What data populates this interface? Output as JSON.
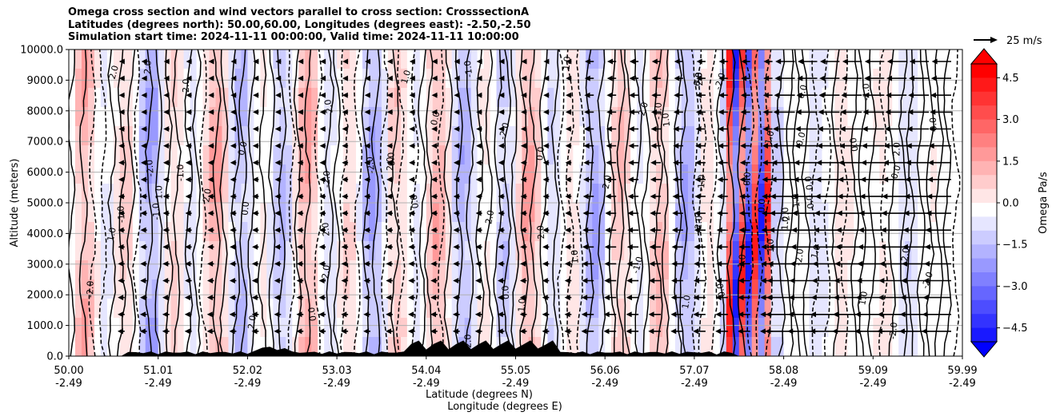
{
  "title_lines": [
    "Omega cross section and wind vectors parallel to cross section: CrosssectionA",
    "Latitudes (degrees north): 50.00,60.00, Longitudes (degrees east): -2.50,-2.50",
    "Simulation start time: 2024-11-11 00:00:00, Valid time: 2024-11-11 10:00:00"
  ],
  "chart_data": {
    "type": "heatmap",
    "title": "Omega cross section and wind vectors parallel to cross section: CrosssectionA",
    "ylabel": "Altitude (meters)",
    "xlabel_1": "Latitude (degrees N)",
    "xlabel_2": "Longitude (degrees E)",
    "ylim": [
      0,
      10000
    ],
    "y_ticks": [
      "0.0",
      "1000.0",
      "2000.0",
      "3000.0",
      "4000.0",
      "5000.0",
      "6000.0",
      "7000.0",
      "8000.0",
      "9000.0",
      "10000.0"
    ],
    "x_ticks": [
      {
        "lat": "50.00",
        "lon": "-2.49"
      },
      {
        "lat": "51.01",
        "lon": "-2.49"
      },
      {
        "lat": "52.02",
        "lon": "-2.49"
      },
      {
        "lat": "53.03",
        "lon": "-2.49"
      },
      {
        "lat": "54.04",
        "lon": "-2.49"
      },
      {
        "lat": "55.05",
        "lon": "-2.49"
      },
      {
        "lat": "56.06",
        "lon": "-2.49"
      },
      {
        "lat": "57.07",
        "lon": "-2.49"
      },
      {
        "lat": "58.08",
        "lon": "-2.49"
      },
      {
        "lat": "59.09",
        "lon": "-2.49"
      },
      {
        "lat": "59.99",
        "lon": "-2.49"
      }
    ],
    "grid": "horizontal",
    "colorbar": {
      "label": "Omega Pa/s",
      "range": [
        -5.0,
        5.0
      ],
      "ticks": [
        "4.5",
        "3.0",
        "1.5",
        "0.0",
        "−1.5",
        "−3.0",
        "−4.5"
      ],
      "colormap": "bwr",
      "extend": "both"
    },
    "vector_key": "25 m/s",
    "contour_labels": [
      "0.0",
      "1.0",
      "-1.0",
      "2.0",
      "-2.0"
    ],
    "colors": {
      "positive": "#ff0000",
      "negative": "#0000ff",
      "neutral": "#ffffff"
    }
  }
}
